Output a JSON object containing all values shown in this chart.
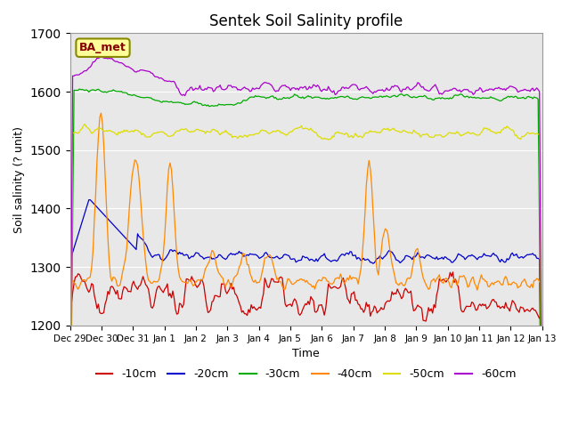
{
  "title": "Sentek Soil Salinity profile",
  "xlabel": "Time",
  "ylabel": "Soil salinity (? unit)",
  "legend_label": "BA_met",
  "ylim": [
    1200,
    1700
  ],
  "bg_color": "#e8e8e8",
  "series_colors": {
    "-10cm": "#cc0000",
    "-20cm": "#0000cc",
    "-30cm": "#00aa00",
    "-40cm": "#ff8800",
    "-50cm": "#dddd00",
    "-60cm": "#aa00cc"
  },
  "x_tick_labels": [
    "Dec 29",
    "Dec 30",
    "Dec 31",
    "Jan 1",
    "Jan 2",
    "Jan 3",
    "Jan 4",
    "Jan 5",
    "Jan 6",
    "Jan 7",
    "Jan 8",
    "Jan 9",
    "Jan 10",
    "Jan 11",
    "Jan 12",
    "Jan 13"
  ],
  "n_points": 350,
  "seed": 42
}
